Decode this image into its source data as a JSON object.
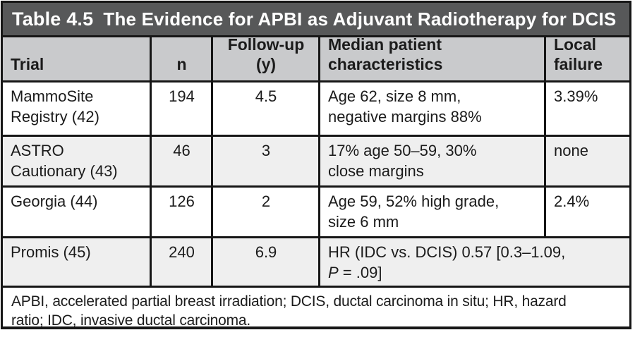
{
  "colors": {
    "page_bg": "#ffffff",
    "border": "#161616",
    "title_bar_bg": "#575859",
    "title_text": "#ffffff",
    "header_bg": "#c9cacc",
    "row_bg": "#ffffff",
    "row_alt_bg": "#efefef",
    "body_text": "#1b1b1b"
  },
  "title": {
    "label": "Table 4.5",
    "text": "The Evidence for APBI as Adjuvant Radiotherapy for DCIS"
  },
  "table": {
    "columns": [
      {
        "label": "Trial",
        "lines": [
          "Trial"
        ]
      },
      {
        "label": "n",
        "lines": [
          "n"
        ]
      },
      {
        "label": "Follow-up (y)",
        "lines": [
          "Follow-up",
          "(y)"
        ]
      },
      {
        "label": "Median patient characteristics",
        "lines": [
          "Median patient",
          "characteristics"
        ]
      },
      {
        "label": "Local failure",
        "lines": [
          "Local",
          "failure"
        ]
      }
    ],
    "rows": [
      {
        "trial_lines": [
          "MammoSite",
          "Registry (42)"
        ],
        "n": "194",
        "followup": "4.5",
        "characteristics_lines": [
          "Age 62, size 8 mm,",
          "negative margins 88%"
        ],
        "local_failure": "3.39%"
      },
      {
        "trial_lines": [
          "ASTRO",
          "Cautionary (43)"
        ],
        "n": "46",
        "followup": "3",
        "characteristics_lines": [
          "17% age 50–59, 30%",
          "close margins"
        ],
        "local_failure": "none"
      },
      {
        "trial_lines": [
          "Georgia (44)"
        ],
        "n": "126",
        "followup": "2",
        "characteristics_lines": [
          "Age 59, 52% high grade,",
          "size 6 mm"
        ],
        "local_failure": "2.4%"
      },
      {
        "trial_lines": [
          "Promis (45)"
        ],
        "n": "240",
        "followup": "6.9",
        "characteristics_line1": "HR (IDC vs. DCIS) 0.57 [0.3–1.09,",
        "characteristics_p_italic": "P",
        "characteristics_line2_rest": " = .09]"
      }
    ],
    "footnote": "APBI, accelerated partial breast irradiation; DCIS, ductal carcinoma in situ; HR, hazard ratio; IDC, invasive ductal carcinoma.",
    "footnote_lines": [
      "APBI, accelerated partial breast irradiation; DCIS, ductal carcinoma in situ; HR, hazard",
      "ratio; IDC, invasive ductal carcinoma."
    ]
  }
}
